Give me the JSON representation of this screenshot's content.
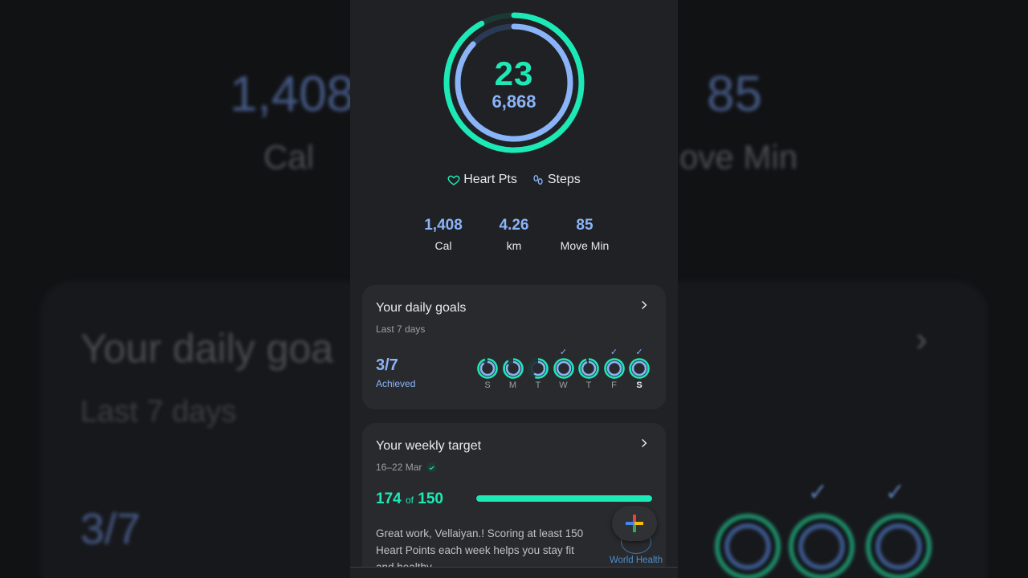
{
  "background": {
    "cal_value": "1,408",
    "cal_label": "Cal",
    "move_value": "85",
    "move_label": "ove Min",
    "goals_title": "Your daily goa",
    "goals_sub": "Last 7 days",
    "achieved": "3/7"
  },
  "summary": {
    "heart_points": "23",
    "steps": "6,868",
    "heart_points_goal_fraction": 0.92,
    "steps_goal_fraction": 0.87,
    "legend_heart": "Heart Pts",
    "legend_steps": "Steps"
  },
  "stats": [
    {
      "value": "1,408",
      "label": "Cal"
    },
    {
      "value": "4.26",
      "label": "km"
    },
    {
      "value": "85",
      "label": "Move Min"
    }
  ],
  "daily_goals": {
    "title": "Your daily goals",
    "subtitle": "Last 7 days",
    "achieved_count": "3/7",
    "achieved_label": "Achieved",
    "days": [
      {
        "letter": "S",
        "checked": false,
        "hp": 0.95,
        "steps": 0.9
      },
      {
        "letter": "M",
        "checked": false,
        "hp": 0.9,
        "steps": 0.85
      },
      {
        "letter": "T",
        "checked": false,
        "hp": 0.55,
        "steps": 0.6
      },
      {
        "letter": "W",
        "checked": true,
        "hp": 1,
        "steps": 1
      },
      {
        "letter": "T",
        "checked": false,
        "hp": 0.95,
        "steps": 0.95
      },
      {
        "letter": "F",
        "checked": true,
        "hp": 1,
        "steps": 1
      },
      {
        "letter": "S",
        "checked": true,
        "hp": 1,
        "steps": 1,
        "today": true
      }
    ],
    "check_glyph": "✓"
  },
  "weekly_target": {
    "title": "Your weekly target",
    "dates": "16–22 Mar",
    "achieved": "174",
    "of_label": "of",
    "goal": "150",
    "progress_fraction": 1.0,
    "message": "Great work, Vellaiyan.! Scoring at least 150 Heart Points each week helps you stay fit and healthy."
  },
  "who": {
    "label": "World Health"
  },
  "colors": {
    "heart": "#1de9b6",
    "steps": "#8ab4f8",
    "surface": "#202124",
    "card": "#292a2d"
  }
}
